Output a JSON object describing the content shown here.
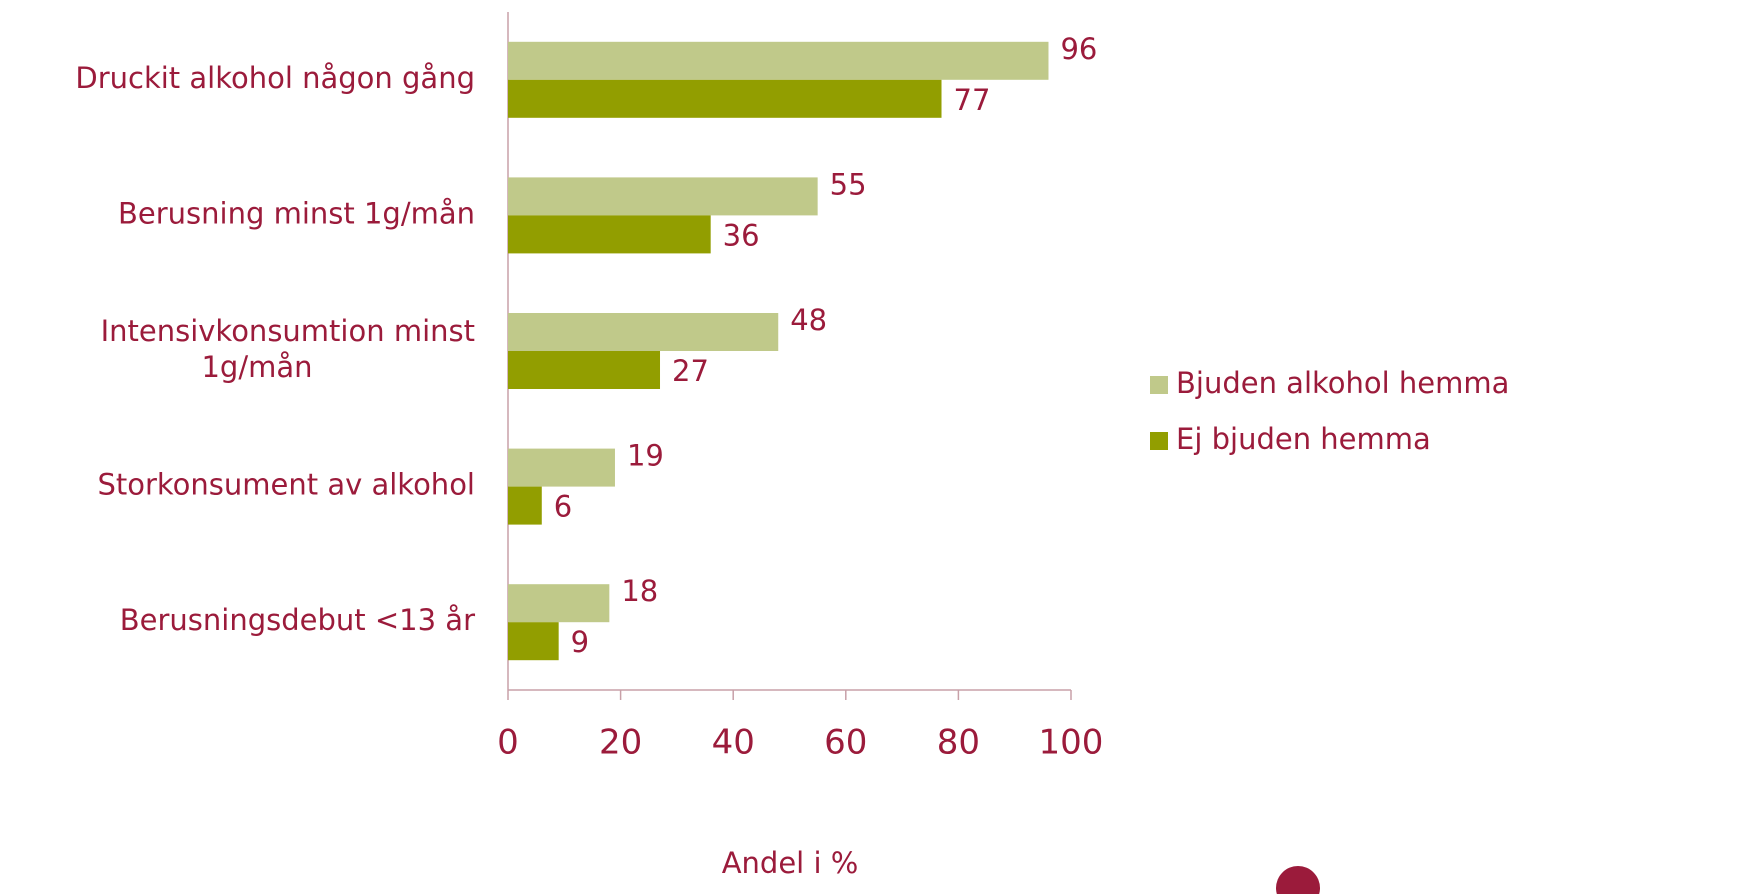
{
  "chart_data": {
    "type": "bar",
    "orientation": "horizontal",
    "categories": [
      "Druckit alkohol någon gång",
      "Berusning minst 1g/mån",
      "Intensivkonsumtion minst 1g/mån",
      "Storkonsument av alkohol",
      "Berusningsdebut <13 år"
    ],
    "series": [
      {
        "name": "Bjuden alkohol hemma",
        "color": "#c0c98a",
        "values": [
          96,
          55,
          48,
          19,
          18
        ]
      },
      {
        "name": "Ej bjuden hemma",
        "color": "#929e00",
        "values": [
          77,
          36,
          27,
          6,
          9
        ]
      }
    ],
    "xlim": [
      0,
      100
    ],
    "xticks": [
      0,
      20,
      40,
      60,
      80,
      100
    ],
    "x_label": "Andel i %",
    "legend": "right"
  }
}
